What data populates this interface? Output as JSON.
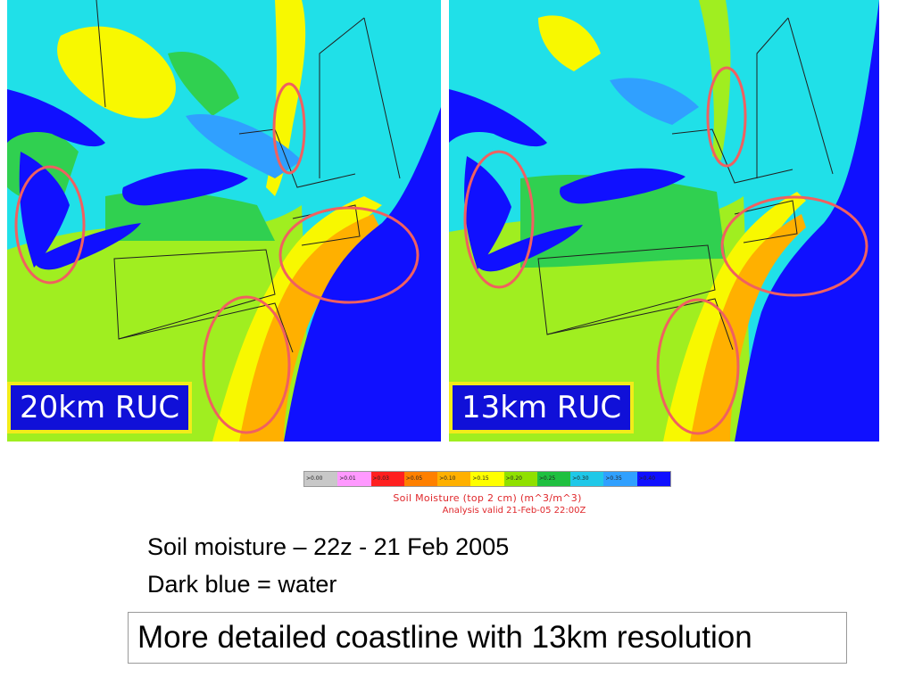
{
  "panels": [
    {
      "label": "20km RUC"
    },
    {
      "label": "13km RUC"
    }
  ],
  "legend": {
    "bins": [
      ">0.00",
      ">0.01",
      ">0.03",
      ">0.05",
      ">0.10",
      ">0.15",
      ">0.20",
      ">0.25",
      ">0.30",
      ">0.35",
      ">0.40"
    ],
    "bin_colors": [
      "#c8c8c8",
      "#ff99ff",
      "#ff2020",
      "#ff8000",
      "#ffb000",
      "#ffff00",
      "#90e000",
      "#20c040",
      "#20c8e8",
      "#30a0ff",
      "#1010ff"
    ],
    "title": "Soil Moisture (top 2 cm)  (m^3/m^3)",
    "subtitle": "Analysis valid 21-Feb-05 22:00Z"
  },
  "caption": {
    "line1": "Soil moisture – 22z - 21 Feb 2005",
    "line2": "Dark blue = water"
  },
  "note": "More detailed coastline with 13km resolution",
  "colors": {
    "water": "#1010ff",
    "cyan": "#20e0e8",
    "light_blue": "#30a0ff",
    "green": "#30d050",
    "yellow_green": "#a0ee20",
    "yellow": "#f8f800",
    "orange": "#ffb000",
    "highlight_ellipse": "#f06060",
    "label_bg": "#1010d8",
    "label_border": "#f2ec1a"
  }
}
